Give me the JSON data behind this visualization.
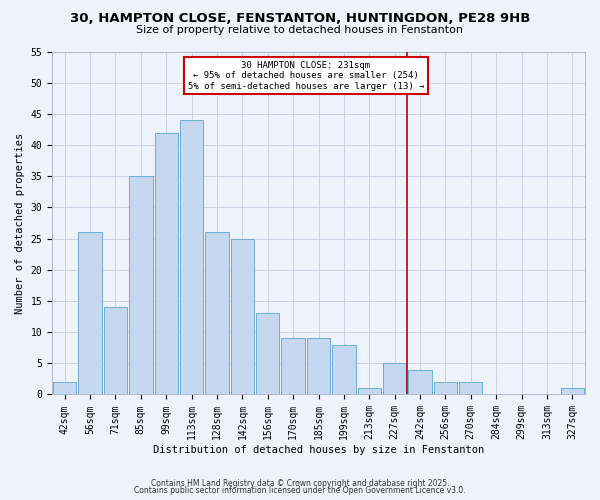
{
  "title": "30, HAMPTON CLOSE, FENSTANTON, HUNTINGDON, PE28 9HB",
  "subtitle": "Size of property relative to detached houses in Fenstanton",
  "xlabel": "Distribution of detached houses by size in Fenstanton",
  "ylabel": "Number of detached properties",
  "bin_labels": [
    "42sqm",
    "56sqm",
    "71sqm",
    "85sqm",
    "99sqm",
    "113sqm",
    "128sqm",
    "142sqm",
    "156sqm",
    "170sqm",
    "185sqm",
    "199sqm",
    "213sqm",
    "227sqm",
    "242sqm",
    "256sqm",
    "270sqm",
    "284sqm",
    "299sqm",
    "313sqm",
    "327sqm"
  ],
  "bar_heights": [
    2,
    26,
    14,
    35,
    42,
    44,
    26,
    25,
    13,
    9,
    9,
    8,
    1,
    5,
    4,
    2,
    2,
    0,
    0,
    0,
    1
  ],
  "bar_color": "#c5d8f0",
  "bar_edge_color": "#6baed6",
  "vline_x": 13.5,
  "vline_color": "#bb0000",
  "annotation_text": "30 HAMPTON CLOSE: 231sqm\n← 95% of detached houses are smaller (254)\n5% of semi-detached houses are larger (13) →",
  "annotation_box_facecolor": "#ffffff",
  "annotation_box_edgecolor": "#cc0000",
  "ylim": [
    0,
    55
  ],
  "yticks": [
    0,
    5,
    10,
    15,
    20,
    25,
    30,
    35,
    40,
    45,
    50,
    55
  ],
  "footer_line1": "Contains HM Land Registry data © Crown copyright and database right 2025.",
  "footer_line2": "Contains public sector information licensed under the Open Government Licence v3.0.",
  "background_color": "#eef2fb",
  "grid_color": "#c0cce0",
  "title_fontsize": 9.5,
  "subtitle_fontsize": 8,
  "axis_fontsize": 7.5,
  "tick_fontsize": 7,
  "footer_fontsize": 5.5
}
